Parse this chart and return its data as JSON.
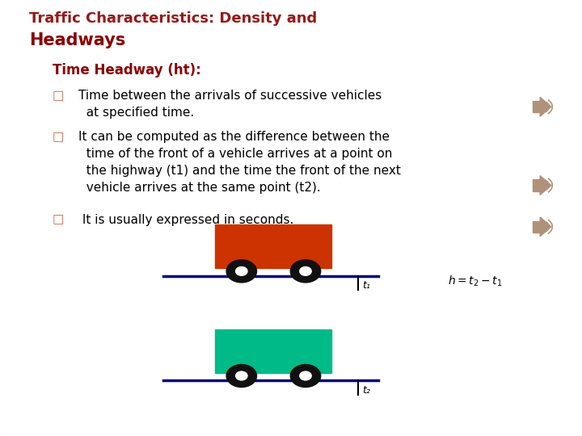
{
  "bg_color": "#e8e8e8",
  "slide_bg": "#ffffff",
  "title_line1": "Traffic Characteristics: Density and",
  "title_line2": "Headways",
  "title_color": "#8B0000",
  "subtitle": "Time Headway (ht):",
  "subtitle_color": "#8B0000",
  "bullet_color": "#CC6644",
  "text_color": "#000000",
  "vehicle1_color": "#CC3300",
  "vehicle2_color": "#00BB88",
  "road_color": "#000080",
  "wheel_color": "#111111",
  "speaker_color": "#b0927a",
  "t1_label": "t₁",
  "t2_label": "t₂"
}
